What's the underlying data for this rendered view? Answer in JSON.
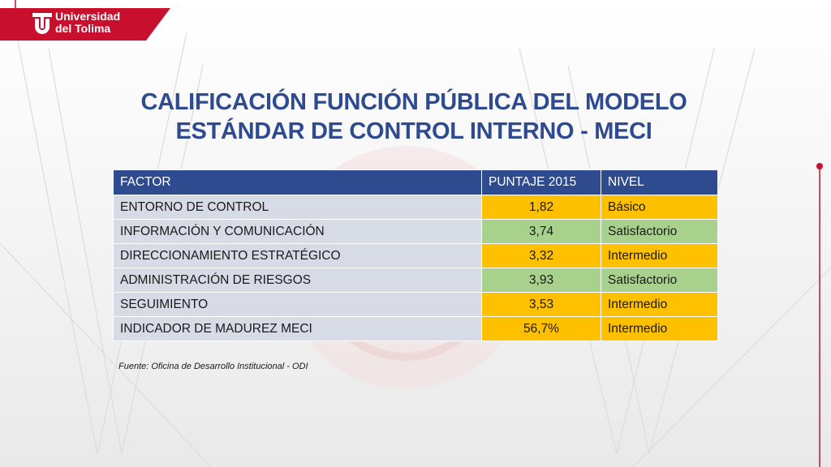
{
  "logo": {
    "line1": "Universidad",
    "line2": "del Tolima"
  },
  "title": "CALIFICACIÓN FUNCIÓN PÚBLICA DEL MODELO ESTÁNDAR DE CONTROL INTERNO - MECI",
  "table": {
    "headers": [
      "FACTOR",
      "PUNTAJE 2015",
      "NIVEL"
    ],
    "rows": [
      {
        "factor": "ENTORNO DE CONTROL",
        "score": "1,82",
        "level": "Básico"
      },
      {
        "factor": "INFORMACIÓN Y COMUNICACIÓN",
        "score": "3,74",
        "level": "Satisfactorio"
      },
      {
        "factor": "DIRECCIONAMIENTO ESTRATÉGICO",
        "score": "3,32",
        "level": "Intermedio"
      },
      {
        "factor": "ADMINISTRACIÓN DE RIESGOS",
        "score": "3,93",
        "level": "Satisfactorio"
      },
      {
        "factor": "SEGUIMIENTO",
        "score": "3,53",
        "level": "Intermedio"
      },
      {
        "factor": "INDICADOR DE MADUREZ MECI",
        "score": "56,7%",
        "level": "Intermedio"
      }
    ]
  },
  "source": "Fuente: Oficina de Desarrollo Institucional - ODI",
  "colors": {
    "brand_red": "#c8102e",
    "title_blue": "#2e4b8f",
    "level_basico": "#ffc000",
    "level_intermedio": "#ffc000",
    "level_satisfactorio": "#a9d18e",
    "factor_cell": "#d7dbe5"
  }
}
